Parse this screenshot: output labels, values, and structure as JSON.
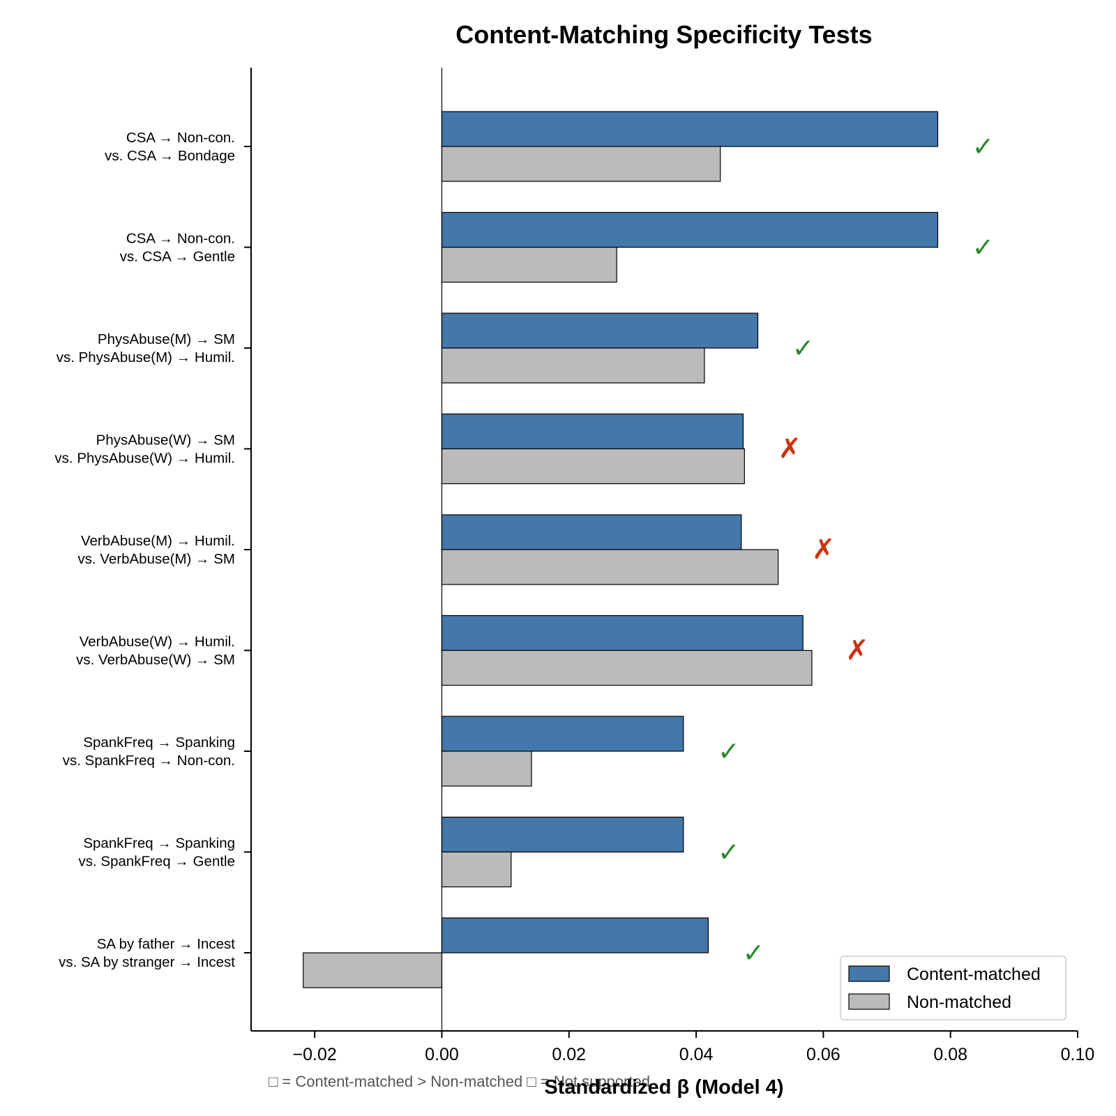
{
  "chart_data": {
    "type": "bar",
    "orientation": "horizontal",
    "title": "Content-Matching Specificity Tests",
    "xlabel": "Standardized β (Model 4)",
    "xlim": [
      -0.03,
      0.1
    ],
    "xticks": [
      -0.02,
      0.0,
      0.02,
      0.04,
      0.06,
      0.08,
      0.1
    ],
    "xtick_labels": [
      "−0.02",
      "0.00",
      "0.02",
      "0.04",
      "0.06",
      "0.08",
      "0.10"
    ],
    "categories": [
      [
        "CSA → Non-con.",
        "vs. CSA → Bondage"
      ],
      [
        "CSA → Non-con.",
        "vs. CSA → Gentle"
      ],
      [
        "PhysAbuse(M) → SM",
        "vs. PhysAbuse(M) → Humil."
      ],
      [
        "PhysAbuse(W) → SM",
        "vs. PhysAbuse(W) → Humil."
      ],
      [
        "VerbAbuse(M) → Humil.",
        "vs. VerbAbuse(M) → SM"
      ],
      [
        "VerbAbuse(W) → Humil.",
        "vs. VerbAbuse(W) → SM"
      ],
      [
        "SpankFreq → Spanking",
        "vs. SpankFreq → Non-con."
      ],
      [
        "SpankFreq → Spanking",
        "vs. SpankFreq → Gentle"
      ],
      [
        "SA by father → Incest",
        "vs. SA by stranger → Incest"
      ]
    ],
    "series": [
      {
        "name": "Content-matched",
        "color": "#4477aa",
        "values": [
          0.078,
          0.078,
          0.0497,
          0.0474,
          0.0471,
          0.0568,
          0.038,
          0.038,
          0.0419
        ]
      },
      {
        "name": "Non-matched",
        "color": "#bbbbbb",
        "values": [
          0.0438,
          0.0275,
          0.0413,
          0.0476,
          0.0529,
          0.0582,
          0.0141,
          0.0109,
          -0.0218
        ]
      }
    ],
    "markers": [
      "✓",
      "✓",
      "✓",
      "✗",
      "✗",
      "✗",
      "✓",
      "✓",
      "✓"
    ],
    "marker_colors": {
      "✓": "#2a8a2a",
      "✗": "#cc3311"
    },
    "legend": {
      "placement": "lower-right"
    },
    "grid": false,
    "note": "□ = Content-matched > Non-matched   □ = Not supported"
  }
}
